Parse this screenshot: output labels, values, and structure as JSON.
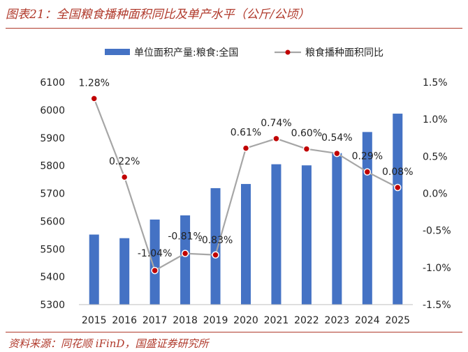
{
  "header": {
    "title": "图表21：全国粮食播种面积同比及单产水平（公斤/公顷）"
  },
  "footer": {
    "source": "资料来源：同花顺 iFinD，国盛证券研究所"
  },
  "colors": {
    "bar": "#4472c4",
    "line": "#a6a6a6",
    "marker": "#c00000",
    "accent": "#b0392b"
  },
  "chart_data": {
    "type": "bar",
    "categories": [
      "2015",
      "2016",
      "2017",
      "2018",
      "2019",
      "2020",
      "2021",
      "2022",
      "2023",
      "2024",
      "2025"
    ],
    "series": [
      {
        "name": "单位面积产量:粮食:全国",
        "type": "bar",
        "axis": "left",
        "values": [
          5552,
          5539,
          5606,
          5621,
          5719,
          5734,
          5805,
          5801,
          5845,
          5921,
          5987
        ]
      },
      {
        "name": "粮食播种面积同比",
        "type": "line",
        "axis": "right",
        "values": [
          1.28,
          0.22,
          -1.04,
          -0.81,
          -0.83,
          0.61,
          0.74,
          0.6,
          0.54,
          0.29,
          0.08
        ],
        "labels": [
          "1.28%",
          "0.22%",
          "-1.04%",
          "-0.81%",
          "-0.83%",
          "0.61%",
          "0.74%",
          "0.60%",
          "0.54%",
          "0.29%",
          "0.08%"
        ]
      }
    ],
    "ylim_left": [
      5300,
      6100
    ],
    "yticks_left": [
      "5300",
      "5400",
      "5500",
      "5600",
      "5700",
      "5800",
      "5900",
      "6000",
      "6100"
    ],
    "ylim_right": [
      -1.5,
      1.5
    ],
    "yticks_right": [
      "-1.5%",
      "-1.0%",
      "-0.5%",
      "0.0%",
      "0.5%",
      "1.0%",
      "1.5%"
    ],
    "legend_position": "top",
    "grid": false
  }
}
